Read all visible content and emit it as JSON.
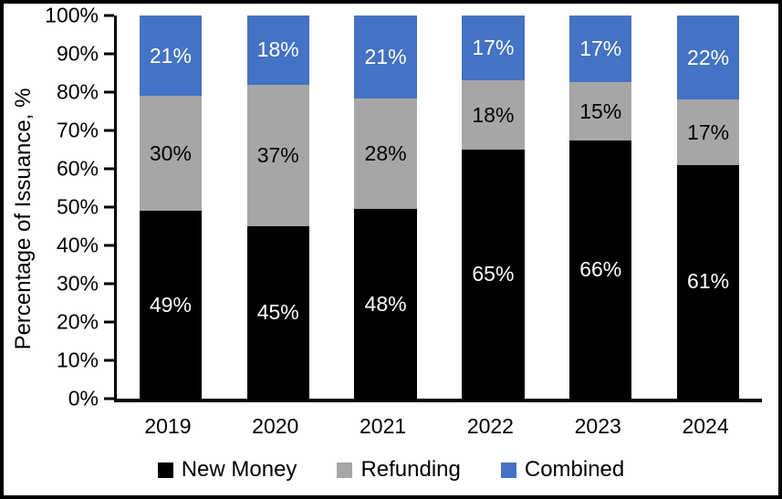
{
  "frame": {
    "border_color": "#000000",
    "background_color": "#ffffff"
  },
  "chart_data": {
    "type": "bar",
    "variant": "stacked-column-100",
    "title": "",
    "xlabel": "",
    "ylabel": "Percentage of Issuance, %",
    "categories": [
      "2019",
      "2020",
      "2021",
      "2022",
      "2023",
      "2024"
    ],
    "series": [
      {
        "name": "New Money",
        "color": "#000000",
        "label_color": "#ffffff",
        "values": [
          49,
          45,
          48,
          65,
          66,
          61
        ],
        "labels": [
          "49%",
          "45%",
          "48%",
          "65%",
          "66%",
          "61%"
        ]
      },
      {
        "name": "Refunding",
        "color": "#A6A6A6",
        "label_color": "#000000",
        "values": [
          30,
          37,
          28,
          18,
          15,
          17
        ],
        "labels": [
          "30%",
          "37%",
          "28%",
          "18%",
          "15%",
          "17%"
        ]
      },
      {
        "name": "Combined",
        "color": "#4472C4",
        "label_color": "#ffffff",
        "values": [
          21,
          18,
          21,
          17,
          17,
          22
        ],
        "labels": [
          "21%",
          "18%",
          "21%",
          "17%",
          "17%",
          "22%"
        ]
      }
    ],
    "y_axis": {
      "min": 0,
      "max": 100,
      "step": 10,
      "ticks": [
        "0%",
        "10%",
        "20%",
        "30%",
        "40%",
        "50%",
        "60%",
        "70%",
        "80%",
        "90%",
        "100%"
      ]
    },
    "legend": {
      "position": "bottom",
      "entries": [
        "New Money",
        "Refunding",
        "Combined"
      ]
    },
    "grid": false
  }
}
